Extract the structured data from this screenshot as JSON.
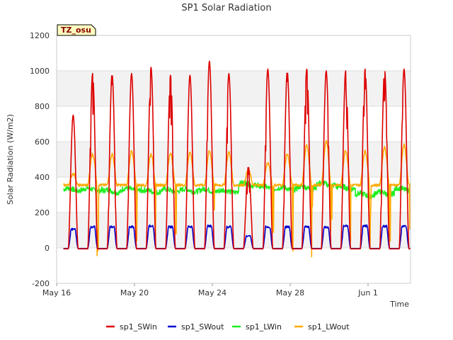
{
  "chart_data": {
    "type": "line",
    "title": "SP1 Solar Radiation",
    "xlabel": "Time",
    "ylabel": "Solar Radiation (W/m2)",
    "badge": "TZ_osu",
    "ylim": [
      -200,
      1200
    ],
    "yticks": [
      -200,
      0,
      200,
      400,
      600,
      800,
      1000,
      1200
    ],
    "xlim_days": [
      0,
      22.3
    ],
    "xticks": [
      {
        "label": "May 16",
        "day": 0
      },
      {
        "label": "May 20",
        "day": 4
      },
      {
        "label": "May 24",
        "day": 8
      },
      {
        "label": "May 28",
        "day": 12
      },
      {
        "label": "Jun 1",
        "day": 16
      }
    ],
    "grid": "horizontal alternating bands",
    "legend_position": "bottom",
    "days": [
      "May 16",
      "May 17",
      "May 18",
      "May 19",
      "May 20",
      "May 21",
      "May 22",
      "May 23",
      "May 24",
      "May 25",
      "May 26",
      "May 27",
      "May 28",
      "May 29",
      "May 30",
      "May 31",
      "Jun 1",
      "Jun 2"
    ],
    "series": [
      {
        "name": "sp1_SWin",
        "color": "#dd0000",
        "daily_peak": [
          750,
          985,
          985,
          985,
          1020,
          975,
          975,
          1055,
          985,
          460,
          1010,
          1000,
          1010,
          1000,
          1000,
          1010,
          1010,
          1010
        ],
        "night": -5
      },
      {
        "name": "sp1_SWout",
        "color": "#0000cc",
        "daily_peak": [
          110,
          125,
          125,
          125,
          130,
          125,
          125,
          130,
          125,
          70,
          125,
          125,
          125,
          125,
          130,
          130,
          130,
          130
        ],
        "night": -3
      },
      {
        "name": "sp1_LWin",
        "color": "#22ee22",
        "daily_mean": [
          330,
          330,
          320,
          330,
          320,
          325,
          325,
          325,
          320,
          360,
          340,
          335,
          340,
          360,
          340,
          300,
          310,
          330
        ],
        "range": [
          290,
          420
        ]
      },
      {
        "name": "sp1_LWout",
        "color": "#ffaa00",
        "daily_peak": [
          420,
          530,
          530,
          545,
          530,
          535,
          540,
          545,
          540,
          440,
          480,
          530,
          580,
          600,
          550,
          545,
          570,
          580
        ],
        "night": 355,
        "min": -50
      }
    ]
  }
}
